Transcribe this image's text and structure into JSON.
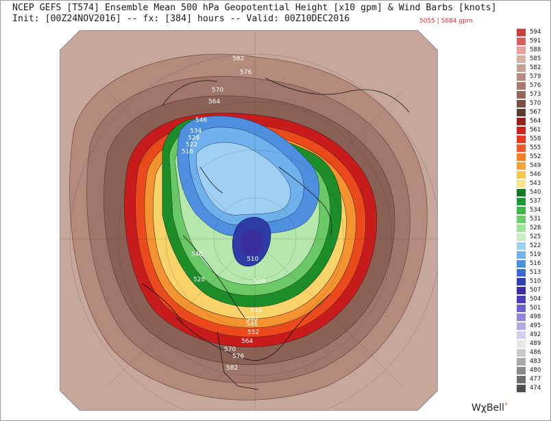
{
  "header": {
    "title_line1": "NCEP GEFS [T574] Ensemble Mean 500 hPa Geopotential Height [x10 gpm] & Wind Barbs [knots]",
    "title_line2": "Init: [00Z24NOV2016] -- fx: [384] hours -- Valid: 00Z10DEC2016",
    "range_text": "5055 | 5884 gpm"
  },
  "brand": {
    "name": "WχBell",
    "mark": "°"
  },
  "contour_labels": [
    "582",
    "576",
    "570",
    "564",
    "546",
    "534",
    "528",
    "522",
    "516",
    "510",
    "528",
    "534",
    "540",
    "546",
    "552",
    "564",
    "570",
    "576",
    "582",
    "540",
    "528"
  ],
  "colorbar": [
    {
      "label": "594",
      "color": "#c9413f"
    },
    {
      "label": "591",
      "color": "#dc5b5b"
    },
    {
      "label": "588",
      "color": "#eea0a0"
    },
    {
      "label": "585",
      "color": "#d8b0a6"
    },
    {
      "label": "582",
      "color": "#c9a096"
    },
    {
      "label": "579",
      "color": "#b88c80"
    },
    {
      "label": "576",
      "color": "#a8786c"
    },
    {
      "label": "573",
      "color": "#95675a"
    },
    {
      "label": "570",
      "color": "#7a4e43"
    },
    {
      "label": "567",
      "color": "#5e3a30"
    },
    {
      "label": "564",
      "color": "#9c1d1d"
    },
    {
      "label": "561",
      "color": "#cf1f1f"
    },
    {
      "label": "558",
      "color": "#e63a1c"
    },
    {
      "label": "555",
      "color": "#ee5a20"
    },
    {
      "label": "552",
      "color": "#f27e28"
    },
    {
      "label": "549",
      "color": "#f6a236"
    },
    {
      "label": "546",
      "color": "#f8c552"
    },
    {
      "label": "543",
      "color": "#f6e38a"
    },
    {
      "label": "540",
      "color": "#0f7a1f"
    },
    {
      "label": "537",
      "color": "#1f9a2c"
    },
    {
      "label": "534",
      "color": "#3fb544"
    },
    {
      "label": "531",
      "color": "#6bcf6a"
    },
    {
      "label": "528",
      "color": "#9ee39a"
    },
    {
      "label": "525",
      "color": "#c6efc0"
    },
    {
      "label": "522",
      "color": "#9ed0f4"
    },
    {
      "label": "519",
      "color": "#6fb1ec"
    },
    {
      "label": "516",
      "color": "#4a8fe0"
    },
    {
      "label": "513",
      "color": "#3a6cd0"
    },
    {
      "label": "510",
      "color": "#2e3fb0"
    },
    {
      "label": "507",
      "color": "#3a2ea0"
    },
    {
      "label": "504",
      "color": "#4a3fb8"
    },
    {
      "label": "501",
      "color": "#6a62d0"
    },
    {
      "label": "498",
      "color": "#8f88dc"
    },
    {
      "label": "495",
      "color": "#b0aae6"
    },
    {
      "label": "492",
      "color": "#d2cff0"
    },
    {
      "label": "489",
      "color": "#e6e6e6"
    },
    {
      "label": "486",
      "color": "#c8c8c8"
    },
    {
      "label": "483",
      "color": "#a9a9a9"
    },
    {
      "label": "480",
      "color": "#8a8a8a"
    },
    {
      "label": "477",
      "color": "#6d6d6d"
    },
    {
      "label": "474",
      "color": "#4f4f4f"
    }
  ]
}
